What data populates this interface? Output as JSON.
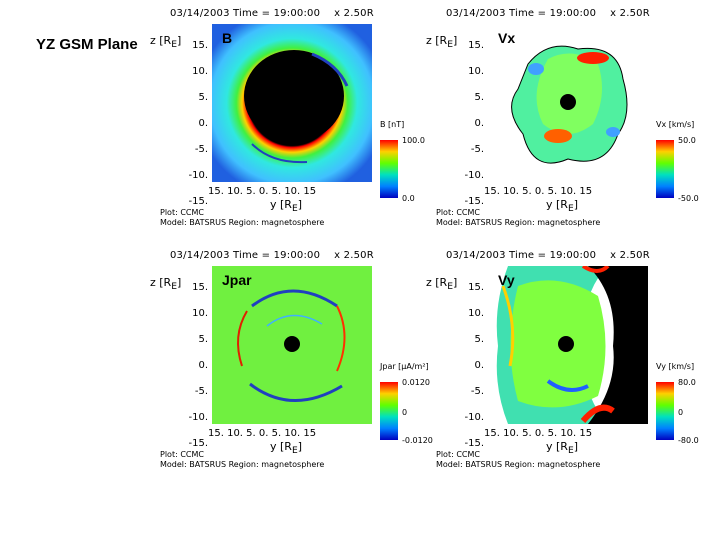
{
  "title": "YZ GSM Plane",
  "header": {
    "timestamp": "03/14/2003 Time = 19:00:00",
    "radius": "x    2.50R"
  },
  "axes": {
    "ylabel": "z [R",
    "ylabel_sub": "E",
    "ylabel_end": "]",
    "yticks": [
      "15.",
      "10.",
      "5.",
      "0.",
      "-5.",
      "-10.",
      "-15."
    ],
    "xticks": "15. 10.  5.  0.  5. 10. 15",
    "xlabel": "y [R",
    "xlabel_sub": "E",
    "xlabel_end": "]"
  },
  "footer": {
    "line1": "Plot: CCMC",
    "line2": "Model: BATSRUS  Region: magnetosphere"
  },
  "panels": [
    {
      "variable": "B",
      "cb_label": "B [nT]",
      "cb_max": "100.0",
      "cb_mid": "",
      "cb_min": "0.0"
    },
    {
      "variable": "Vx",
      "cb_label": "Vx [km/s]",
      "cb_max": "50.0",
      "cb_mid": "",
      "cb_min": "-50.0"
    },
    {
      "variable": "Jpar",
      "cb_label": "Jpar [μA/m²]",
      "cb_max": "0.0120",
      "cb_mid": "0",
      "cb_min": "-0.0120"
    },
    {
      "variable": "Vy",
      "cb_label": "Vy [km/s]",
      "cb_max": "80.0",
      "cb_mid": "0",
      "cb_min": "-80.0"
    }
  ]
}
